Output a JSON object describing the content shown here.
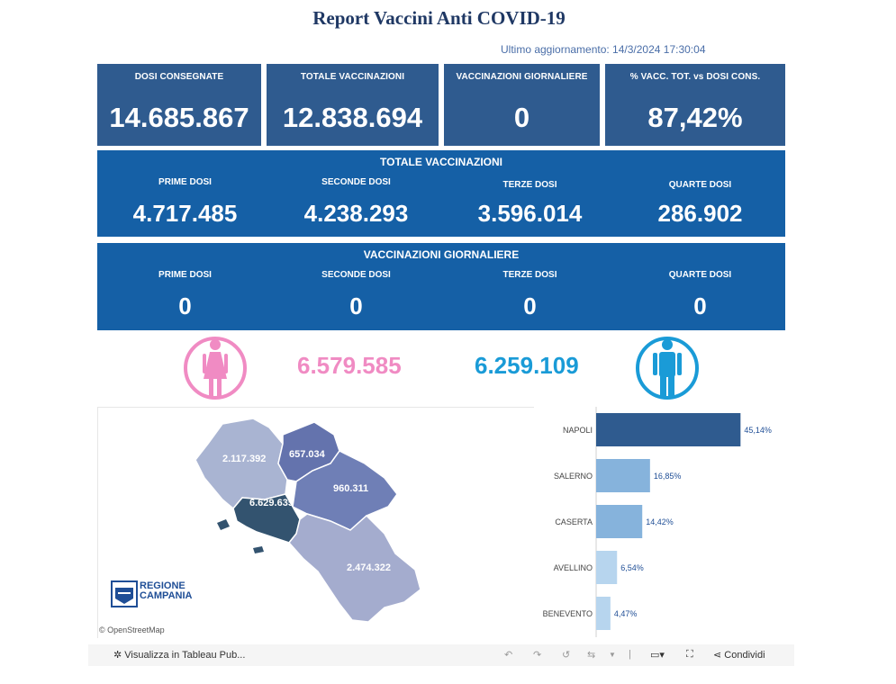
{
  "title": "Report Vaccini Anti COVID-19",
  "updated": "Ultimo aggiornamento: 14/3/2024  17:30:04",
  "kpis": [
    {
      "label": "DOSI  CONSEGNATE",
      "value": "14.685.867"
    },
    {
      "label": "TOTALE VACCINAZIONI",
      "value": "12.838.694"
    },
    {
      "label": "VACCINAZIONI GIORNALIERE",
      "value": "0"
    },
    {
      "label": "% VACC. TOT. vs DOSI CONS.",
      "value": "87,42%"
    }
  ],
  "totale": {
    "title": "TOTALE VACCINAZIONI",
    "cells": [
      {
        "label": "PRIME DOSI",
        "value": "4.717.485"
      },
      {
        "label": "SECONDE DOSI",
        "value": "4.238.293"
      },
      {
        "label": "TERZE DOSI",
        "value": "3.596.014"
      },
      {
        "label": "QUARTE DOSI",
        "value": "286.902"
      }
    ]
  },
  "giornaliere": {
    "title": "VACCINAZIONI GIORNALIERE",
    "cells": [
      {
        "label": "PRIME DOSI",
        "value": "0"
      },
      {
        "label": "SECONDE DOSI",
        "value": "0"
      },
      {
        "label": "TERZE DOSI",
        "value": "0"
      },
      {
        "label": "QUARTE DOSI",
        "value": "0"
      }
    ]
  },
  "gender": {
    "female_value": "6.579.585",
    "male_value": "6.259.109",
    "female_color": "#f08bc3",
    "male_color": "#1a9bd7"
  },
  "map": {
    "regions": {
      "caserta": "2.117.392",
      "benevento": "657.034",
      "avellino": "960.311",
      "napoli": "6.629.635",
      "salerno": "2.474.322"
    },
    "logo_line1": "REGIONE",
    "logo_line2": "CAMPANIA",
    "attribution": "© OpenStreetMap"
  },
  "chart_data": {
    "type": "bar",
    "orientation": "horizontal",
    "categories": [
      "NAPOLI",
      "SALERNO",
      "CASERTA",
      "AVELLINO",
      "BENEVENTO"
    ],
    "values": [
      45.14,
      16.85,
      14.42,
      6.54,
      4.47
    ],
    "labels": [
      "45,14%",
      "16,85%",
      "14,42%",
      "6,54%",
      "4,47%"
    ],
    "colors": [
      "#2f5b8f",
      "#86b3dc",
      "#86b3dc",
      "#b7d5ee",
      "#b7d5ee"
    ],
    "xlim": [
      0,
      50
    ]
  },
  "toolbar": {
    "view_label": "Visualizza in Tableau Pub...",
    "share_label": "Condividi"
  }
}
